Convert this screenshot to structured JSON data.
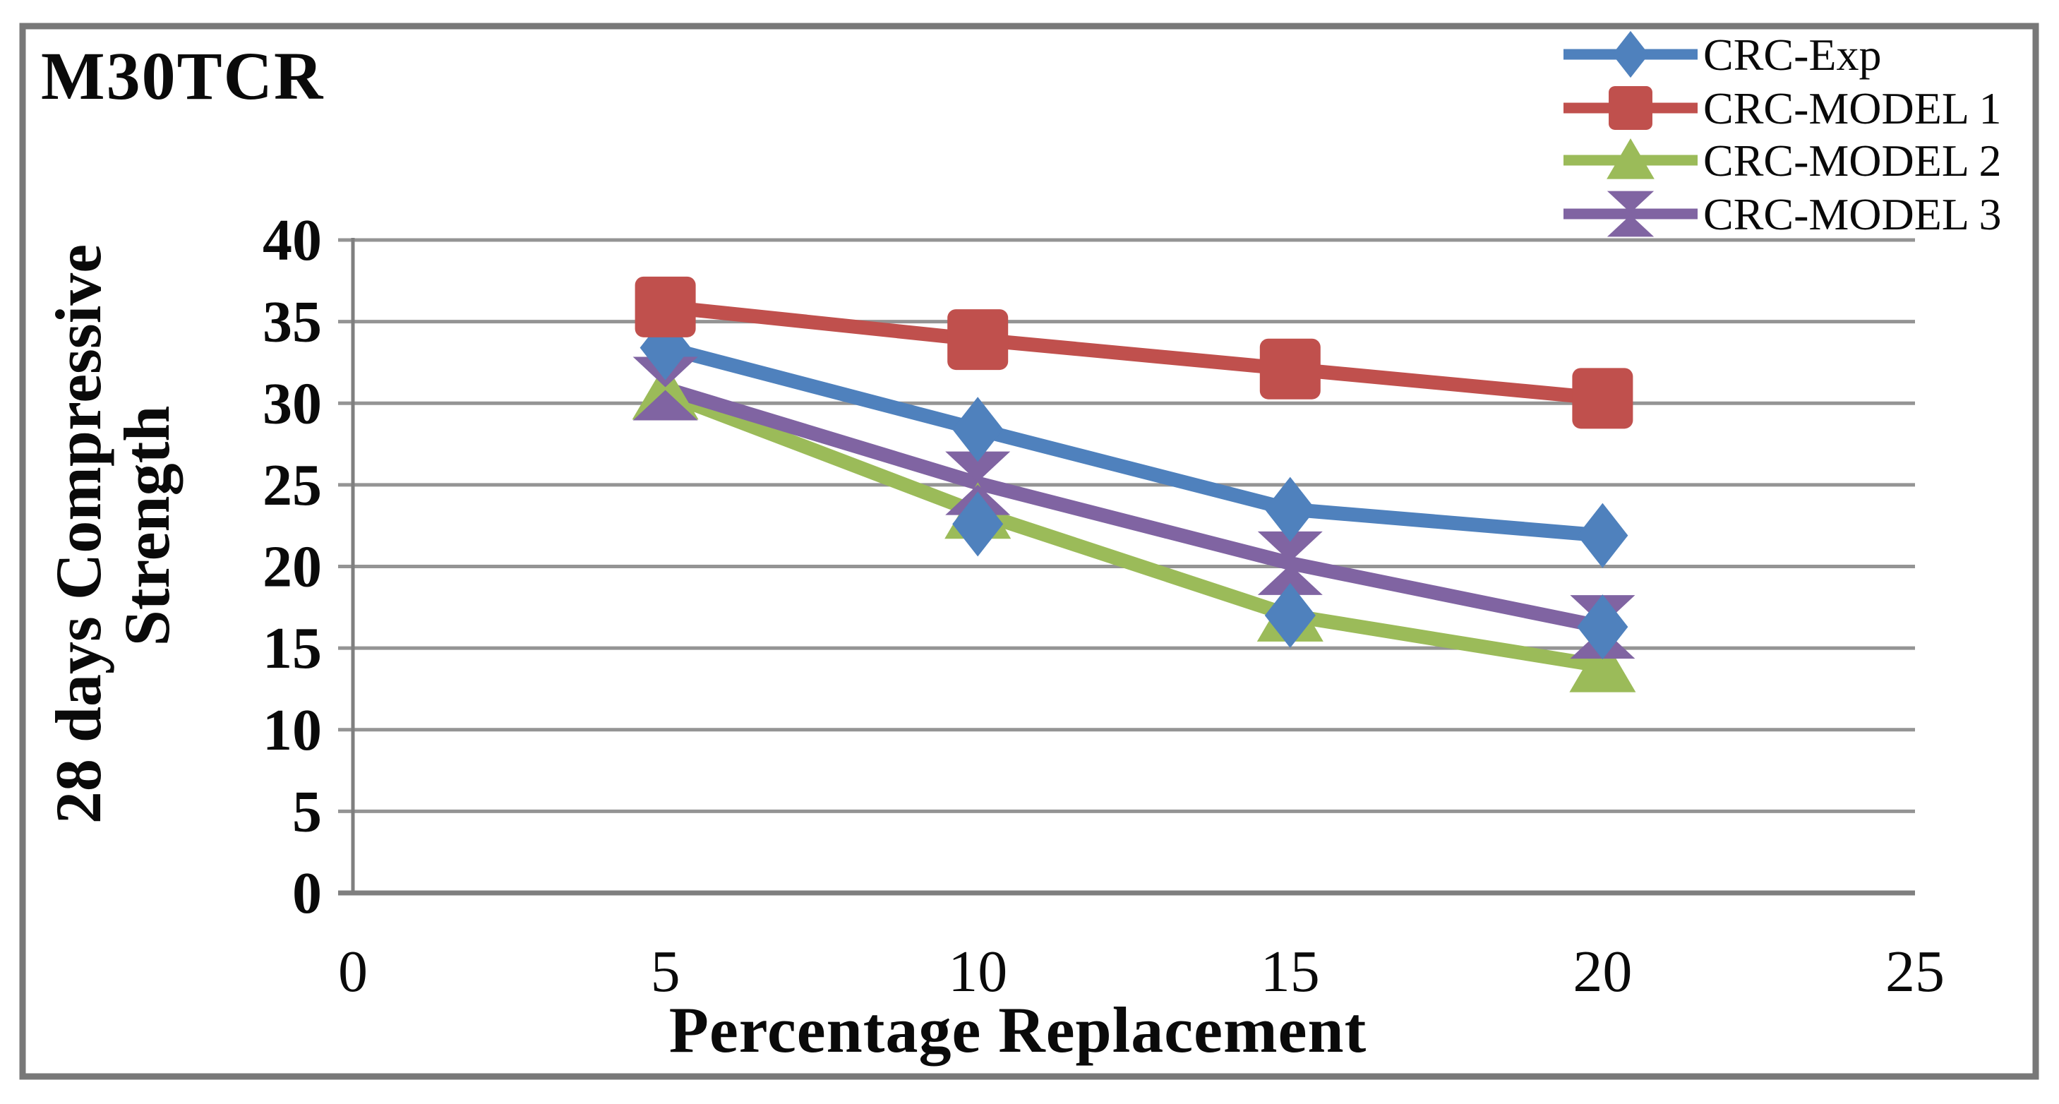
{
  "figure": {
    "background": "#ffffff",
    "frame_color": "#787878",
    "grid_color": "#949494",
    "axis_color": "#7f7f7f",
    "text_color": "#0a0a0a"
  },
  "chart_data": {
    "type": "line",
    "title": "M30TCR",
    "xlabel": "Percentage Replacement",
    "ylabel": "28 days Compressive Strength",
    "ylabel_lines": [
      "28 days Compressive",
      "Strength"
    ],
    "x": [
      5,
      10,
      15,
      20
    ],
    "xlim": [
      0,
      25
    ],
    "ylim": [
      0,
      40
    ],
    "xtick_labels": [
      "0",
      "5",
      "10",
      "15",
      "20",
      "25"
    ],
    "ytick_labels": [
      "40",
      "35",
      "30",
      "25",
      "20",
      "15",
      "10",
      "5",
      "0"
    ],
    "grid": "horizontal gridlines every 5 units",
    "legend_position": "top-right",
    "series": [
      {
        "name": "CRC-Exp",
        "color": "#4F81BD",
        "marker": "diamond",
        "values": [
          33.4,
          28.4,
          23.5,
          21.9
        ]
      },
      {
        "name": "CRC-MODEL 1",
        "color": "#C0504D",
        "marker": "square",
        "values": [
          35.9,
          33.9,
          32.1,
          30.3
        ]
      },
      {
        "name": "CRC-MODEL 2",
        "color": "#9BBB59",
        "marker": "triangle",
        "values": [
          30.6,
          23.3,
          17.0,
          13.9
        ]
      },
      {
        "name": "CRC-MODEL 3",
        "color": "#8064A2",
        "marker": "x",
        "values": [
          30.9,
          25.1,
          20.2,
          16.3
        ]
      }
    ],
    "stray_markers": {
      "marker": "diamond",
      "color": "#4F81BD",
      "points": [
        [
          10,
          22.6
        ],
        [
          15,
          17.0
        ],
        [
          20,
          16.3
        ]
      ]
    }
  }
}
